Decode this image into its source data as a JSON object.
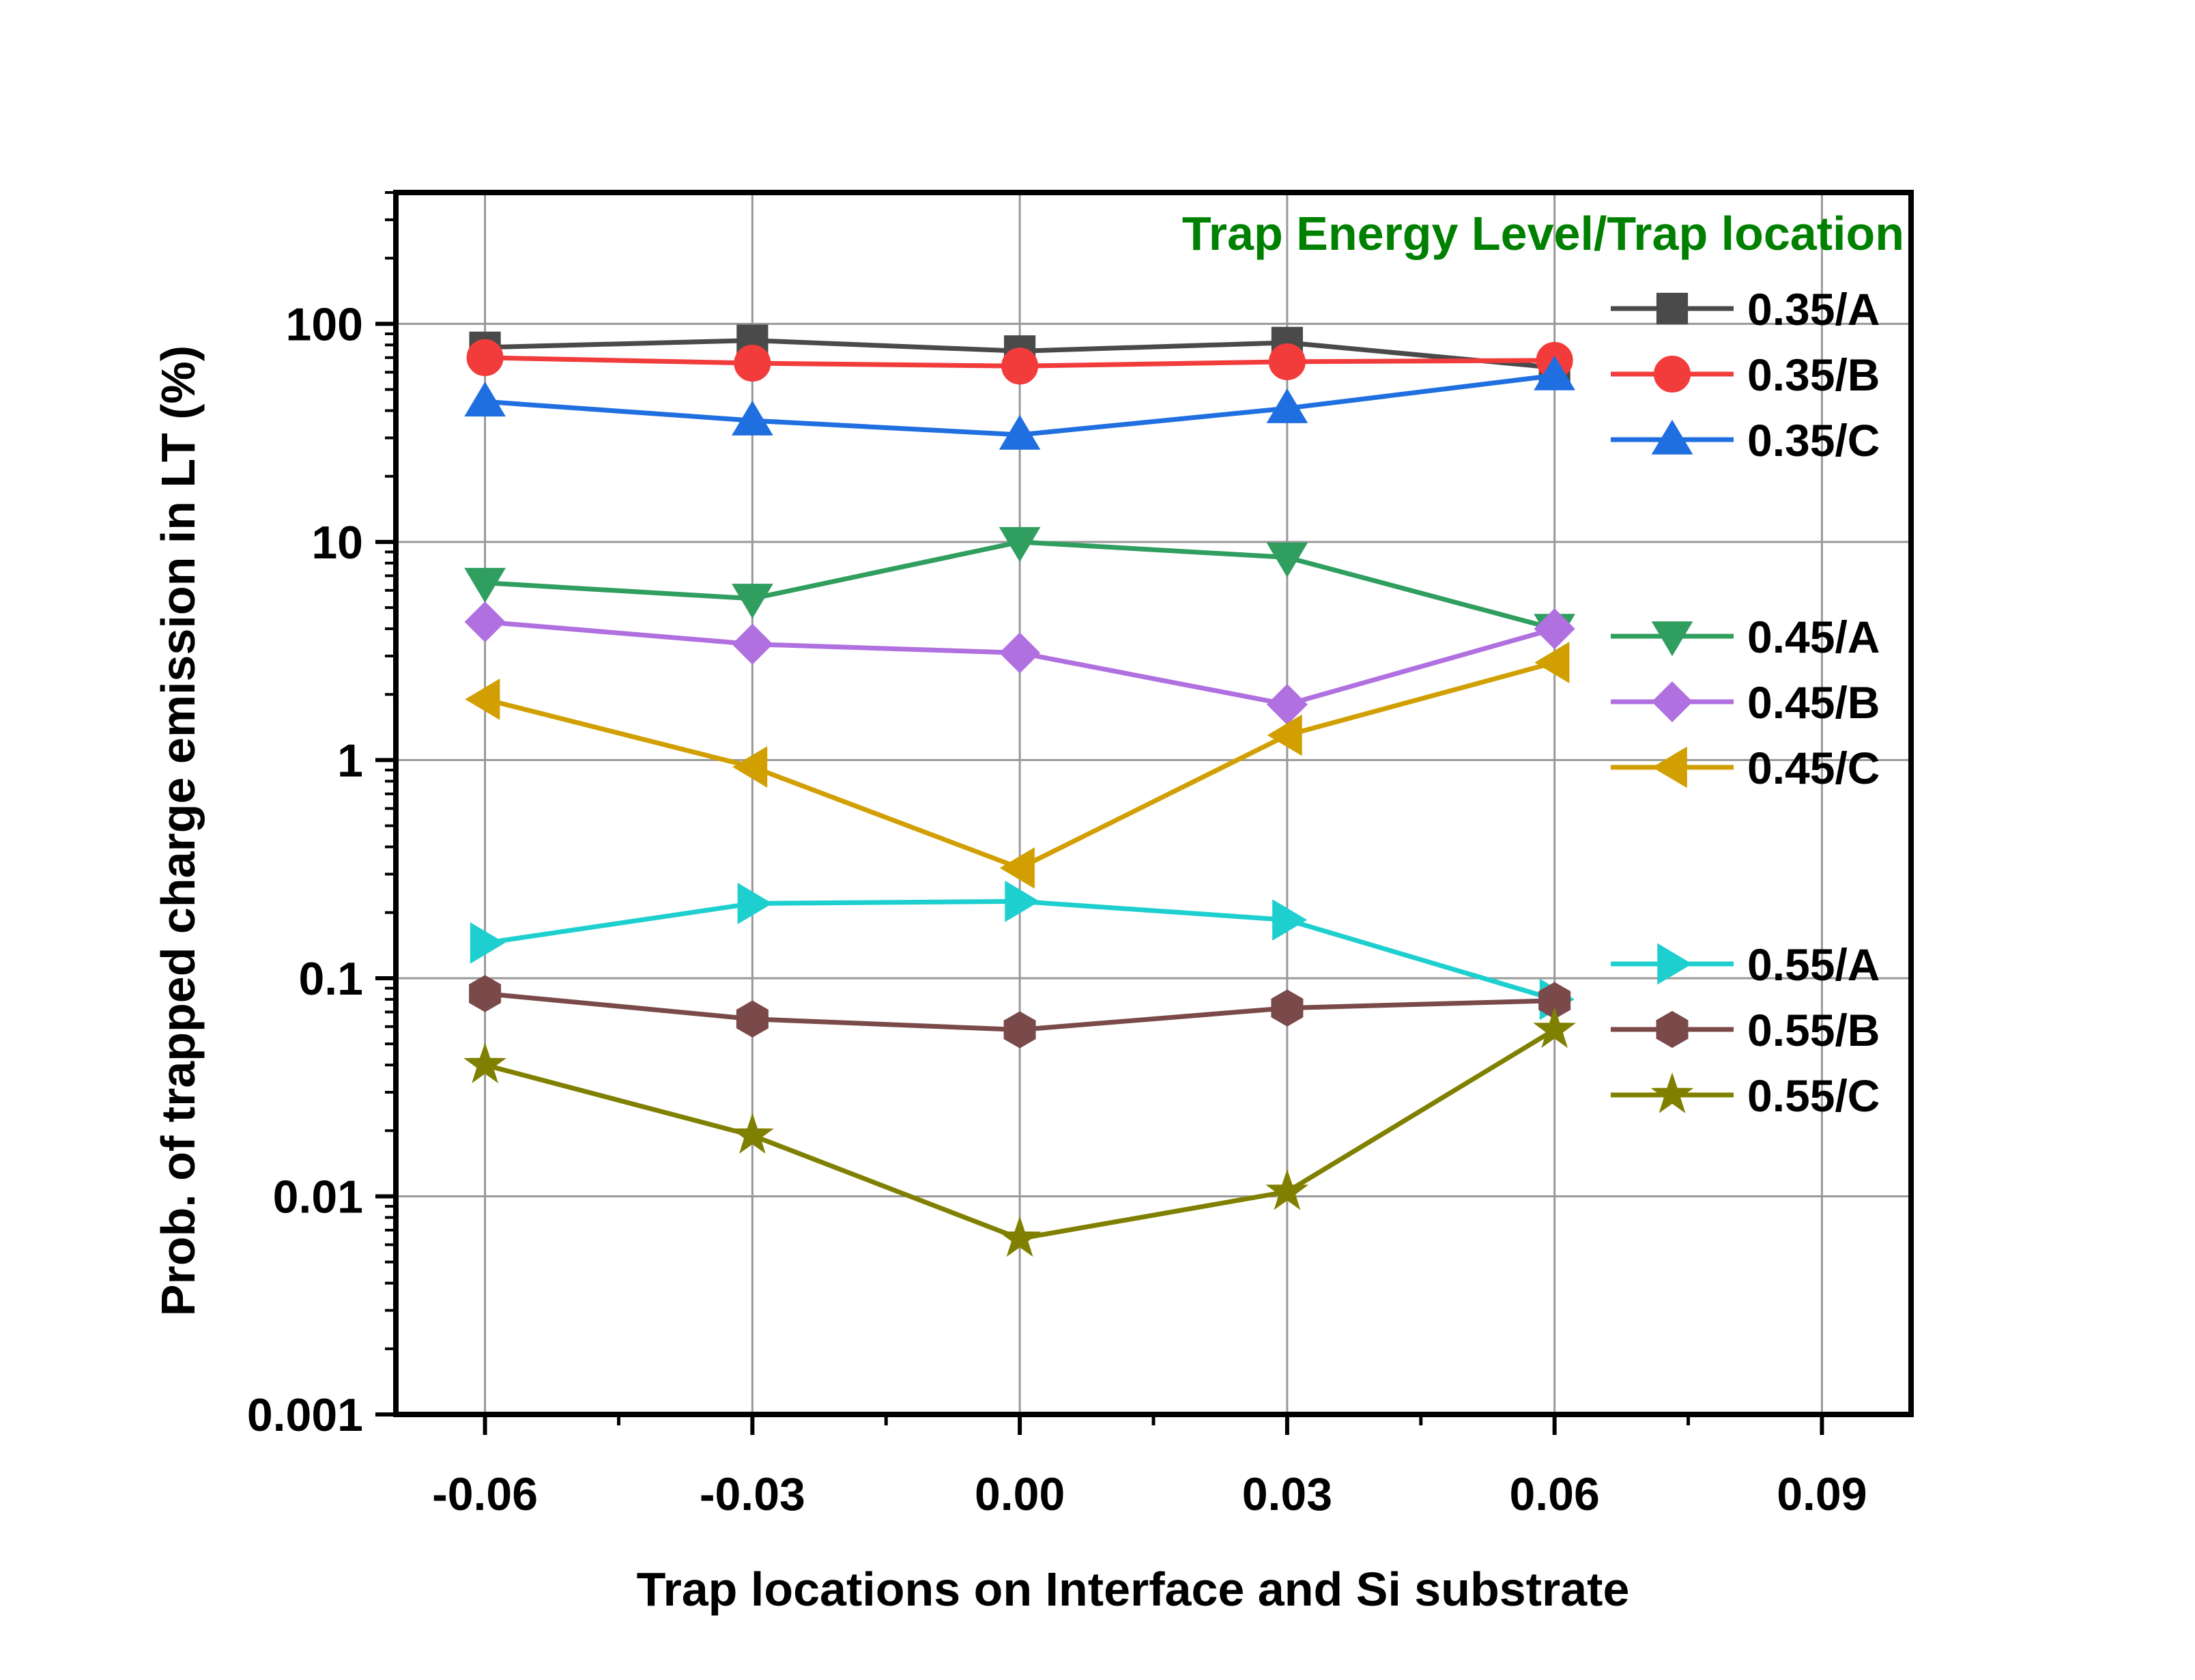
{
  "chart_data": {
    "type": "line",
    "xlabel": "Trap locations on Interface and Si substrate",
    "ylabel": "Prob. of trapped charge emission in LT (%)",
    "legend_title": "Trap Energy Level/Trap location",
    "legend_title_color": "#008000",
    "xlim": [
      -0.07,
      0.1
    ],
    "ylim": [
      0.001,
      400
    ],
    "yscale": "log",
    "grid": true,
    "legend_position": "right",
    "x_ticks": [
      -0.06,
      -0.03,
      0.0,
      0.03,
      0.06,
      0.09
    ],
    "x_tick_labels": [
      "-0.06",
      "-0.03",
      "0.00",
      "0.03",
      "0.06",
      "0.09"
    ],
    "y_ticks": [
      0.001,
      0.01,
      0.1,
      1,
      10,
      100
    ],
    "y_tick_labels": [
      "0.001",
      "0.01",
      "0.1",
      "1",
      "10",
      "100"
    ],
    "x": [
      -0.06,
      -0.03,
      0.0,
      0.03,
      0.06
    ],
    "series": [
      {
        "name": "0.35/A",
        "color": "#4a4a4a",
        "marker": "square",
        "values": [
          78,
          84,
          75,
          82,
          63
        ]
      },
      {
        "name": "0.35/B",
        "color": "#f23c3c",
        "marker": "circle",
        "values": [
          70,
          66,
          64,
          67,
          68
        ]
      },
      {
        "name": "0.35/C",
        "color": "#1f6fe0",
        "marker": "triangle-up",
        "values": [
          44,
          36,
          31,
          41,
          58
        ]
      },
      {
        "name": "0.45/A",
        "color": "#2f9e5e",
        "marker": "triangle-down",
        "values": [
          6.5,
          5.5,
          10,
          8.5,
          4.0
        ]
      },
      {
        "name": "0.45/B",
        "color": "#b070e0",
        "marker": "diamond",
        "values": [
          4.3,
          3.4,
          3.1,
          1.8,
          4.0
        ]
      },
      {
        "name": "0.45/C",
        "color": "#d19f00",
        "marker": "triangle-left",
        "values": [
          1.9,
          0.93,
          0.32,
          1.3,
          2.8
        ]
      },
      {
        "name": "0.55/A",
        "color": "#1ecfcf",
        "marker": "triangle-right",
        "values": [
          0.145,
          0.22,
          0.225,
          0.185,
          0.08
        ]
      },
      {
        "name": "0.55/B",
        "color": "#7a4a4a",
        "marker": "hexagon",
        "values": [
          0.085,
          0.065,
          0.058,
          0.073,
          0.079
        ]
      },
      {
        "name": "0.55/C",
        "color": "#808000",
        "marker": "star",
        "values": [
          0.04,
          0.019,
          0.0064,
          0.0105,
          0.058
        ]
      }
    ]
  }
}
